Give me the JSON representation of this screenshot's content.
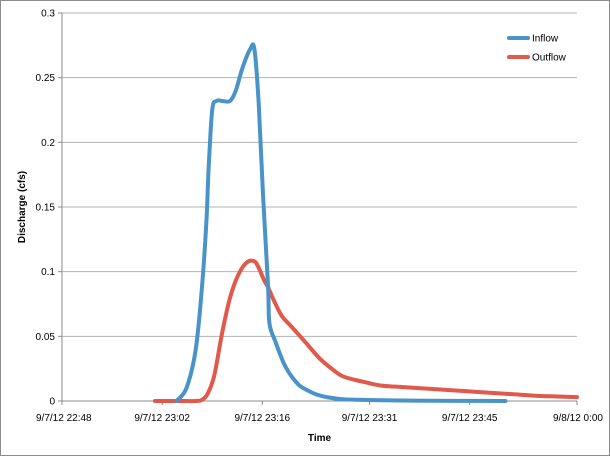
{
  "chart_data": {
    "type": "line",
    "title": "",
    "xlabel": "Time",
    "ylabel": "Discharge (cfs)",
    "xlim": [
      0,
      72
    ],
    "ylim": [
      0,
      0.3
    ],
    "y_ticks": [
      0,
      0.05,
      0.1,
      0.15,
      0.2,
      0.25,
      0.3
    ],
    "y_tick_labels": [
      "0",
      "0.05",
      "0.1",
      "0.15",
      "0.2",
      "0.25",
      "0.3"
    ],
    "x_ticks": [
      0,
      14,
      28,
      43,
      57,
      72
    ],
    "x_tick_labels": [
      "9/7/12 22:48",
      "9/7/12 23:02",
      "9/7/12 23:16",
      "9/7/12 23:31",
      "9/7/12 23:45",
      "9/8/12 0:00"
    ],
    "grid": {
      "horizontal": true,
      "vertical": false
    },
    "legend": {
      "position": "top-right"
    },
    "series": [
      {
        "name": "Inflow",
        "color": "#4a93c8",
        "x": [
          16,
          17.4,
          18.7,
          19.6,
          20.2,
          20.5,
          21,
          21.6,
          22.4,
          23.5,
          24.3,
          25.2,
          26.3,
          26.9,
          27.5,
          28.1,
          28.8,
          29,
          29.9,
          30.5,
          31.2,
          32.1,
          33.2,
          34.4,
          35.6,
          37,
          39,
          41,
          46,
          52,
          57,
          62
        ],
        "y": [
          0,
          0.01,
          0.04,
          0.09,
          0.14,
          0.18,
          0.225,
          0.232,
          0.232,
          0.232,
          0.24,
          0.257,
          0.272,
          0.272,
          0.23,
          0.16,
          0.09,
          0.06,
          0.045,
          0.036,
          0.027,
          0.019,
          0.012,
          0.008,
          0.005,
          0.003,
          0.0015,
          0.001,
          0.0005,
          0.0002,
          0.0001,
          0
        ]
      },
      {
        "name": "Outflow",
        "color": "#e0594b",
        "x": [
          13,
          16,
          18.7,
          19.6,
          20.4,
          21.3,
          22.4,
          23.5,
          24.6,
          25.8,
          26.9,
          27.5,
          28.2,
          28.8,
          29.6,
          30.7,
          32,
          34.1,
          36,
          37.7,
          39.3,
          42,
          44.5,
          47,
          49.8,
          52.6,
          55.3,
          58.1,
          60.9,
          63.7,
          66.5,
          69.3,
          72
        ],
        "y": [
          0,
          0,
          0,
          0.001,
          0.006,
          0.02,
          0.053,
          0.08,
          0.097,
          0.107,
          0.108,
          0.103,
          0.094,
          0.088,
          0.078,
          0.066,
          0.058,
          0.045,
          0.033,
          0.025,
          0.019,
          0.015,
          0.012,
          0.011,
          0.01,
          0.009,
          0.008,
          0.007,
          0.006,
          0.005,
          0.004,
          0.0035,
          0.003
        ]
      }
    ]
  }
}
